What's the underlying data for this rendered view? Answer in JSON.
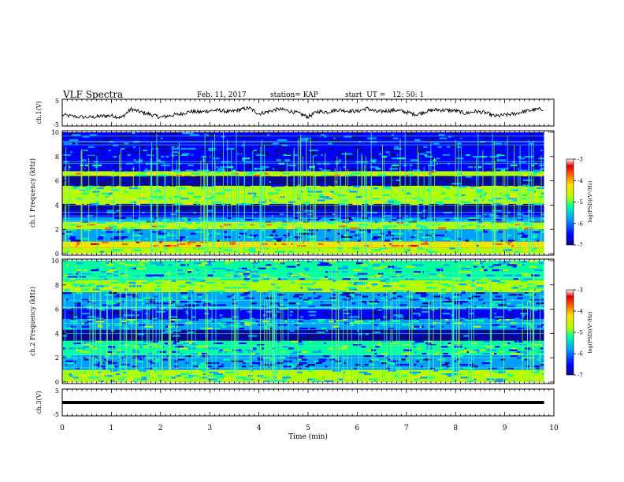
{
  "header": {
    "title": "VLF Spectra",
    "date": "Feb. 11, 2017",
    "station": "station= KAP",
    "start": "start  UT =   12: 50: 1"
  },
  "chart_data": [
    {
      "type": "line",
      "panel": "ch1-waveform",
      "ylabel": "ch.1(V)",
      "ylim": [
        -5,
        5
      ],
      "yticks": [
        "5",
        "-5"
      ],
      "xlim": [
        0,
        10
      ],
      "x": [
        0,
        0.3,
        0.6,
        0.8,
        1.0,
        1.2,
        1.4,
        1.6,
        1.8,
        2.0,
        2.2,
        2.4,
        2.6,
        2.8,
        3.0,
        3.2,
        3.4,
        3.6,
        3.8,
        4.0,
        4.2,
        4.4,
        4.6,
        4.8,
        5.0,
        5.2,
        5.4,
        5.6,
        5.8,
        6.0,
        6.2,
        6.4,
        6.6,
        6.8,
        7.0,
        7.2,
        7.4,
        7.6,
        7.8,
        8.0,
        8.2,
        8.4,
        8.6,
        8.8,
        9.0,
        9.2,
        9.4,
        9.6,
        9.8
      ],
      "y": [
        -1.0,
        -1.8,
        -2.0,
        -1.5,
        -1.2,
        -2.2,
        1.5,
        0.2,
        -0.8,
        -2.0,
        -1.2,
        -0.6,
        0.5,
        0.2,
        0.8,
        1.0,
        0.3,
        1.2,
        2.0,
        -0.5,
        0.5,
        1.5,
        0.8,
        -0.2,
        -1.8,
        0.5,
        0.3,
        1.2,
        0.8,
        0.5,
        1.8,
        0.3,
        0.8,
        1.0,
        0.2,
        -0.8,
        0.5,
        1.2,
        1.0,
        0.8,
        -0.3,
        0.5,
        0.0,
        -1.5,
        -1.0,
        -0.5,
        0.5,
        1.2,
        1.6
      ]
    },
    {
      "type": "heatmap",
      "panel": "ch1-spectrogram",
      "xlim": [
        0,
        10
      ],
      "ylim": [
        0,
        10
      ],
      "ylabel": "ch.1  Frequency (kHz)",
      "yticks": [
        "0",
        "2",
        "4",
        "6",
        "8",
        "10"
      ],
      "colorbar": {
        "range": [
          -7,
          -3
        ],
        "ticks": [
          "-3",
          "-4",
          "-5",
          "-6",
          "-7"
        ],
        "label": "log(PSD)(V²/Hz)"
      },
      "bands": [
        {
          "f0": 0.0,
          "f1": 0.5,
          "level": -4.8
        },
        {
          "f0": 0.5,
          "f1": 1.0,
          "level": -4.2
        },
        {
          "f0": 1.0,
          "f1": 2.0,
          "level": -5.8
        },
        {
          "f0": 2.0,
          "f1": 2.6,
          "level": -4.6
        },
        {
          "f0": 2.6,
          "f1": 3.0,
          "level": -6.0
        },
        {
          "f0": 3.0,
          "f1": 3.6,
          "level": -6.4
        },
        {
          "f0": 3.6,
          "f1": 4.1,
          "level": -6.9
        },
        {
          "f0": 4.1,
          "f1": 5.6,
          "level": -4.9
        },
        {
          "f0": 5.6,
          "f1": 6.4,
          "level": -6.7
        },
        {
          "f0": 6.4,
          "f1": 6.8,
          "level": -4.7
        },
        {
          "f0": 6.8,
          "f1": 8.2,
          "level": -6.2
        },
        {
          "f0": 8.2,
          "f1": 10.0,
          "level": -6.5
        }
      ]
    },
    {
      "type": "heatmap",
      "panel": "ch2-spectrogram",
      "xlim": [
        0,
        10
      ],
      "ylim": [
        0,
        10
      ],
      "ylabel": "ch.2  Frequency (kHz)",
      "yticks": [
        "0",
        "2",
        "4",
        "6",
        "8",
        "10"
      ],
      "colorbar": {
        "range": [
          -7,
          -3
        ],
        "ticks": [
          "-3",
          "-4",
          "-5",
          "-6",
          "-7"
        ],
        "label": "log(PSD)(V²/Hz)"
      },
      "bands": [
        {
          "f0": 0.0,
          "f1": 1.0,
          "level": -5.0
        },
        {
          "f0": 1.0,
          "f1": 2.2,
          "level": -5.9
        },
        {
          "f0": 2.2,
          "f1": 3.4,
          "level": -5.4
        },
        {
          "f0": 3.4,
          "f1": 3.7,
          "level": -6.95
        },
        {
          "f0": 3.7,
          "f1": 4.3,
          "level": -6.6
        },
        {
          "f0": 4.3,
          "f1": 5.2,
          "level": -5.6
        },
        {
          "f0": 5.2,
          "f1": 6.0,
          "level": -6.3
        },
        {
          "f0": 6.0,
          "f1": 7.4,
          "level": -6.0
        },
        {
          "f0": 7.4,
          "f1": 8.4,
          "level": -5.0
        },
        {
          "f0": 8.4,
          "f1": 10.0,
          "level": -5.4
        }
      ]
    },
    {
      "type": "line",
      "panel": "ch3-waveform",
      "ylabel": "ch.3(V)",
      "ylim": [
        -5,
        5
      ],
      "yticks": [
        "5",
        "0",
        "-5"
      ],
      "xlim": [
        0,
        10
      ],
      "x": [
        0,
        9.8
      ],
      "y": [
        0,
        0
      ]
    }
  ],
  "xaxis": {
    "label": "Time (min)",
    "ticks": [
      "0",
      "1",
      "2",
      "3",
      "4",
      "5",
      "6",
      "7",
      "8",
      "9",
      "10"
    ]
  },
  "colors": {
    "line": "#000000",
    "colormap": [
      "#0a0a8c",
      "#0000ff",
      "#00a0ff",
      "#00ffa0",
      "#b0ff00",
      "#ffe000",
      "#ff6000",
      "#e00000",
      "#ffffff"
    ]
  }
}
